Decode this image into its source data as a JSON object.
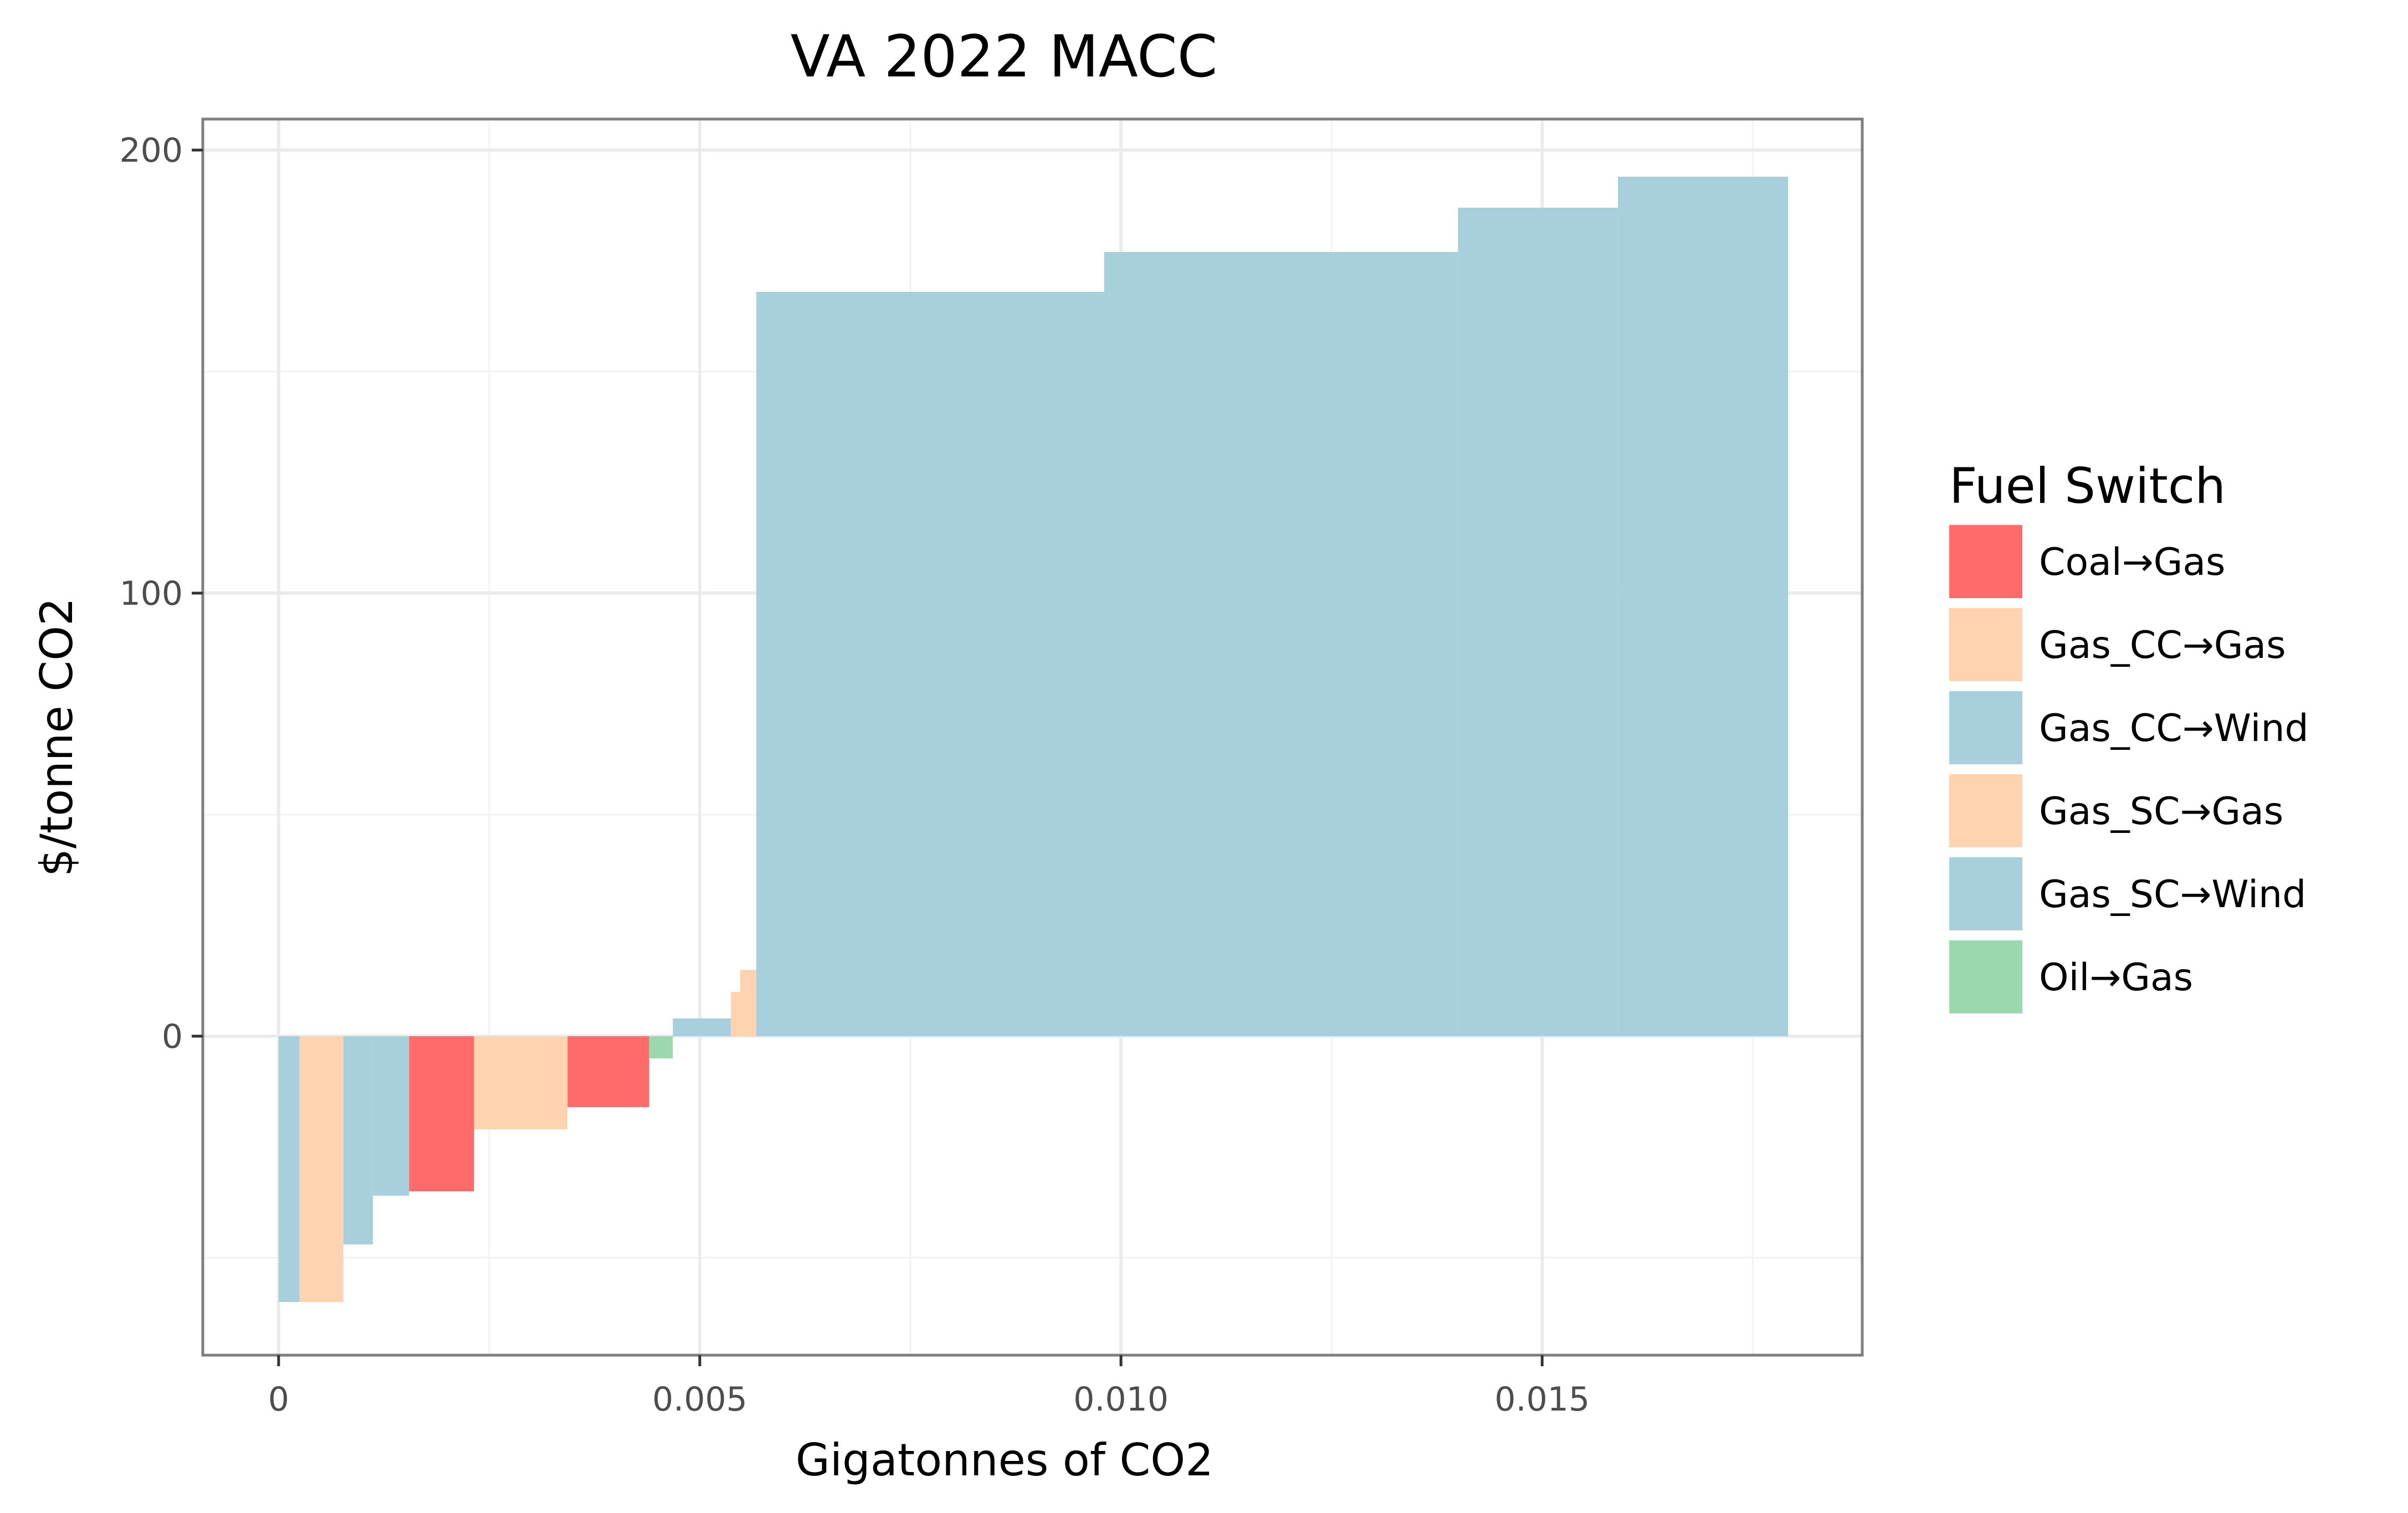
{
  "chart_data": {
    "type": "bar",
    "title": "VA 2022 MACC",
    "xlabel": "Gigatonnes of CO2",
    "ylabel": "$/tonne CO2",
    "xlim": [
      -0.0009,
      0.0188
    ],
    "ylim": [
      -72,
      207
    ],
    "x_ticks": [
      {
        "value": 0,
        "label": "0"
      },
      {
        "value": 0.005,
        "label": "0.005"
      },
      {
        "value": 0.01,
        "label": "0.010"
      },
      {
        "value": 0.015,
        "label": "0.015"
      }
    ],
    "y_ticks": [
      {
        "value": 0,
        "label": "0"
      },
      {
        "value": 100,
        "label": "100"
      },
      {
        "value": 200,
        "label": "200"
      }
    ],
    "grid": true,
    "legend": {
      "title": "Fuel Switch",
      "position": "right",
      "entries": [
        {
          "key": "coal_gas",
          "label": "Coal→Gas",
          "color": "#ff6b6b"
        },
        {
          "key": "gascc_gas",
          "label": "Gas_CC→Gas",
          "color": "#ffd3b0"
        },
        {
          "key": "gascc_wind",
          "label": "Gas_CC→Wind",
          "color": "#a8d0dc"
        },
        {
          "key": "gassc_gas",
          "label": "Gas_SC→Gas",
          "color": "#ffd3b0"
        },
        {
          "key": "gassc_wind",
          "label": "Gas_SC→Wind",
          "color": "#a8d0dc"
        },
        {
          "key": "oil_gas",
          "label": "Oil→Gas",
          "color": "#9bd8ae"
        }
      ]
    },
    "bars": [
      {
        "x_start": 0.0,
        "x_end": 0.00025,
        "cost": -60,
        "fuel_switch": "gassc_wind"
      },
      {
        "x_start": 0.00025,
        "x_end": 0.00077,
        "cost": -60,
        "fuel_switch": "gassc_gas"
      },
      {
        "x_start": 0.00077,
        "x_end": 0.00112,
        "cost": -47,
        "fuel_switch": "gassc_wind"
      },
      {
        "x_start": 0.00112,
        "x_end": 0.00155,
        "cost": -36,
        "fuel_switch": "gassc_wind"
      },
      {
        "x_start": 0.00155,
        "x_end": 0.00232,
        "cost": -35,
        "fuel_switch": "coal_gas"
      },
      {
        "x_start": 0.00232,
        "x_end": 0.00343,
        "cost": -21,
        "fuel_switch": "gassc_gas"
      },
      {
        "x_start": 0.00343,
        "x_end": 0.0044,
        "cost": -16,
        "fuel_switch": "coal_gas"
      },
      {
        "x_start": 0.0044,
        "x_end": 0.00468,
        "cost": -5,
        "fuel_switch": "oil_gas"
      },
      {
        "x_start": 0.00468,
        "x_end": 0.00537,
        "cost": 4,
        "fuel_switch": "gascc_wind"
      },
      {
        "x_start": 0.00537,
        "x_end": 0.00548,
        "cost": 10,
        "fuel_switch": "gascc_gas"
      },
      {
        "x_start": 0.00548,
        "x_end": 0.00567,
        "cost": 15,
        "fuel_switch": "gascc_gas"
      },
      {
        "x_start": 0.00567,
        "x_end": 0.0098,
        "cost": 168,
        "fuel_switch": "gascc_wind"
      },
      {
        "x_start": 0.0098,
        "x_end": 0.014,
        "cost": 177,
        "fuel_switch": "gascc_wind"
      },
      {
        "x_start": 0.014,
        "x_end": 0.0159,
        "cost": 187,
        "fuel_switch": "gascc_wind"
      },
      {
        "x_start": 0.0159,
        "x_end": 0.01792,
        "cost": 194,
        "fuel_switch": "gascc_wind"
      }
    ]
  }
}
